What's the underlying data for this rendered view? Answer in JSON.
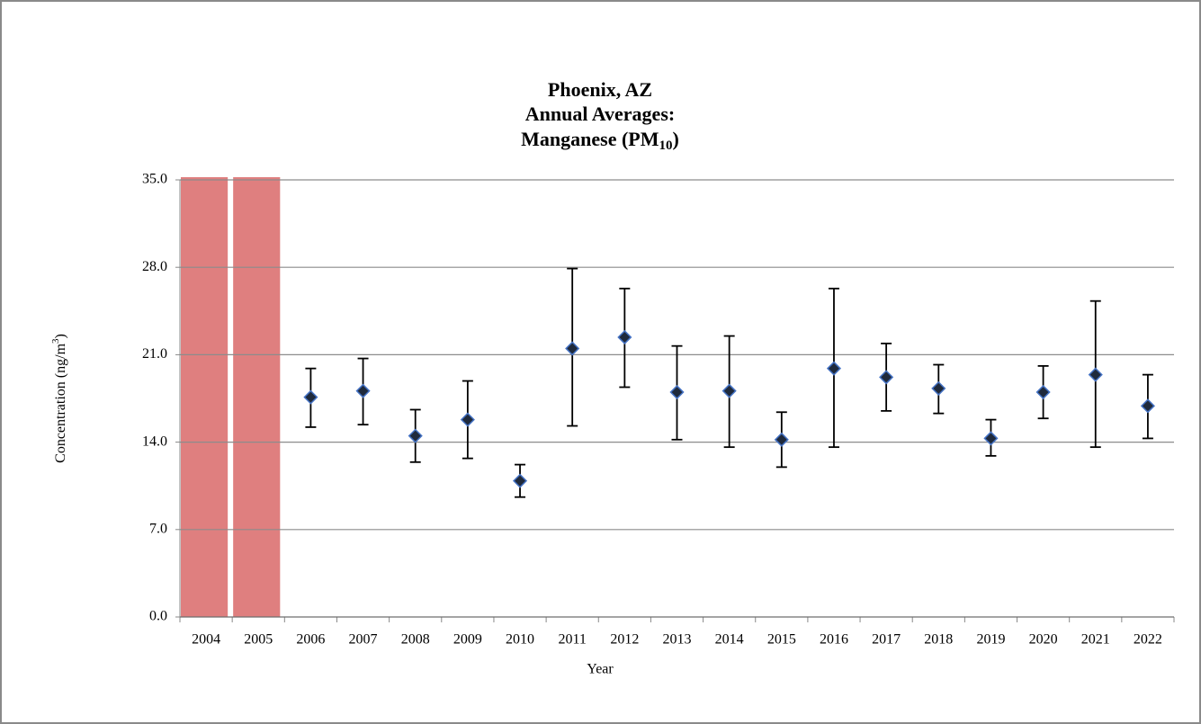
{
  "chart_data": {
    "type": "errorbar",
    "title": {
      "lines": [
        "Phoenix, AZ",
        "Annual Averages:"
      ],
      "last_line": {
        "text": "Manganese (PM",
        "subscript": "10",
        "suffix": ")"
      }
    },
    "x_label": "Year",
    "y_label": {
      "text": "Concentration (ng/m",
      "superscript": "3",
      "suffix": ")"
    },
    "categories": [
      "2004",
      "2005",
      "2006",
      "2007",
      "2008",
      "2009",
      "2010",
      "2011",
      "2012",
      "2013",
      "2014",
      "2015",
      "2016",
      "2017",
      "2018",
      "2019",
      "2020",
      "2021",
      "2022"
    ],
    "values": [
      null,
      null,
      17.6,
      18.1,
      14.5,
      15.8,
      10.9,
      21.5,
      22.4,
      18.0,
      18.1,
      14.2,
      19.9,
      19.2,
      18.3,
      14.3,
      18.0,
      19.4,
      16.9
    ],
    "lower": [
      null,
      null,
      15.2,
      15.4,
      12.4,
      12.7,
      9.6,
      15.3,
      18.4,
      14.2,
      13.6,
      12.0,
      13.6,
      16.5,
      16.3,
      12.9,
      15.9,
      13.6,
      14.3
    ],
    "upper": [
      null,
      null,
      19.9,
      20.7,
      16.6,
      18.9,
      12.2,
      27.9,
      26.3,
      21.7,
      22.5,
      16.4,
      26.3,
      21.9,
      20.2,
      15.8,
      20.1,
      25.3,
      19.4
    ],
    "marker_fill": "#1f2a3c",
    "marker_edge": "#4472c4",
    "shaded_categories": [
      0,
      1
    ],
    "shade_color": "#df7f7f",
    "ylim": [
      0,
      35
    ],
    "yticks": [
      {
        "value": 0,
        "label": "0.0"
      },
      {
        "value": 7,
        "label": "7.0"
      },
      {
        "value": 14,
        "label": "14.0"
      },
      {
        "value": 21,
        "label": "21.0"
      },
      {
        "value": 28,
        "label": "28.0"
      },
      {
        "value": 35,
        "label": "35.0"
      }
    ],
    "grid": true
  }
}
